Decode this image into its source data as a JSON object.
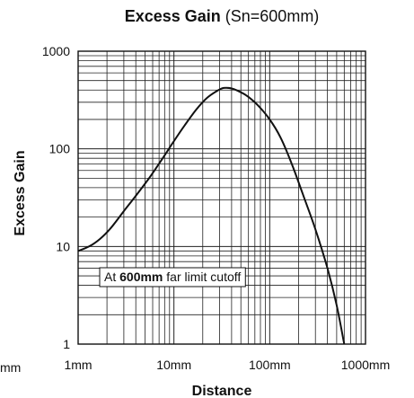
{
  "chart_data": {
    "type": "line",
    "title_bold": "Excess Gain",
    "title_rest": " (Sn=600mm)",
    "xlabel": "Distance",
    "ylabel": "Excess Gain",
    "x_scale": "log",
    "y_scale": "log",
    "xlim": [
      1,
      1000
    ],
    "ylim": [
      1,
      1000
    ],
    "x_ticks": [
      {
        "value": 1,
        "label": "1mm"
      },
      {
        "value": 10,
        "label": "10mm"
      },
      {
        "value": 100,
        "label": "100mm"
      },
      {
        "value": 1000,
        "label": "1000mm"
      }
    ],
    "y_ticks": [
      {
        "value": 1,
        "label": "1"
      },
      {
        "value": 10,
        "label": "10"
      },
      {
        "value": 100,
        "label": "100"
      },
      {
        "value": 1000,
        "label": "1000"
      }
    ],
    "edge_label": "mm",
    "grid": true,
    "annotation": {
      "pre": "At ",
      "bold": "600mm",
      "post": " far limit cutoff"
    },
    "series": [
      {
        "color": "#111111",
        "points": [
          [
            1,
            9.0
          ],
          [
            1.3,
            10.0
          ],
          [
            1.7,
            12.0
          ],
          [
            2.2,
            15.5
          ],
          [
            3,
            23
          ],
          [
            4,
            33
          ],
          [
            5.5,
            50
          ],
          [
            7.5,
            78
          ],
          [
            10,
            120
          ],
          [
            13,
            175
          ],
          [
            17,
            250
          ],
          [
            22,
            330
          ],
          [
            28,
            390
          ],
          [
            33,
            420
          ],
          [
            40,
            415
          ],
          [
            50,
            380
          ],
          [
            60,
            340
          ],
          [
            75,
            280
          ],
          [
            100,
            200
          ],
          [
            130,
            130
          ],
          [
            170,
            70
          ],
          [
            220,
            35
          ],
          [
            300,
            15
          ],
          [
            400,
            6
          ],
          [
            500,
            2.5
          ],
          [
            600,
            1.0
          ]
        ]
      }
    ]
  }
}
